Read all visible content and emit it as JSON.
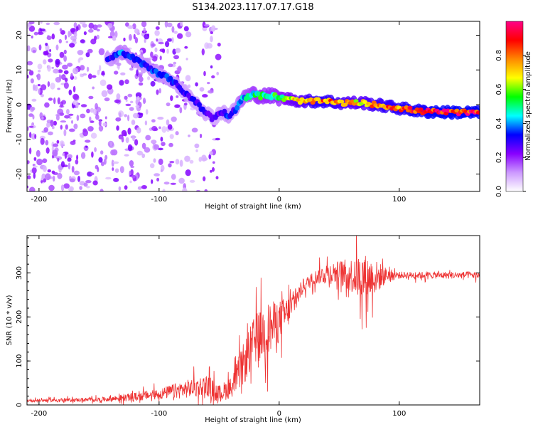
{
  "title": "S134.2023.117.07.17.G18",
  "chart_data": [
    {
      "type": "heatmap",
      "xlabel": "Height of straight line (km)",
      "ylabel": "Frequency (Hz)",
      "xlim": [
        -210,
        167
      ],
      "ylim": [
        -25,
        24
      ],
      "xticks": [
        -200,
        -100,
        0,
        100
      ],
      "yticks": [
        20,
        10,
        0,
        -10,
        -20
      ],
      "colorbar": {
        "label": "Normalized spectral amplitude",
        "range": [
          0,
          1
        ],
        "ticks": [
          "0.0",
          "0.2",
          "0.4",
          "0.6",
          "0.8"
        ],
        "colors": [
          "#ffffff",
          "#cc99ff",
          "#8800ff",
          "#0000ff",
          "#00ffff",
          "#00ff00",
          "#ffff00",
          "#ff8800",
          "#ff0000",
          "#ff0088"
        ]
      },
      "ridge": {
        "x": [
          -143,
          -130,
          -120,
          -110,
          -100,
          -90,
          -80,
          -70,
          -62,
          -55,
          -48,
          -42,
          -38,
          -30,
          -22,
          -15,
          -5,
          0,
          10,
          20,
          30,
          40,
          50,
          60,
          70,
          80,
          90,
          100,
          110,
          120,
          130,
          140,
          150,
          160,
          167
        ],
        "y": [
          13,
          15,
          13,
          11,
          9,
          7,
          4,
          1,
          -2,
          -4,
          -2,
          -3,
          -2,
          2,
          3,
          2.5,
          2.5,
          2,
          1.5,
          1,
          1,
          1,
          0.5,
          0.5,
          0.5,
          0,
          -0.5,
          -1,
          -1.5,
          -2,
          -2,
          -2.2,
          -2.2,
          -2.3,
          -2.3
        ],
        "amplitude": [
          0.3,
          0.4,
          0.35,
          0.35,
          0.35,
          0.35,
          0.3,
          0.3,
          0.3,
          0.25,
          0.3,
          0.35,
          0.3,
          0.45,
          0.5,
          0.55,
          0.55,
          0.55,
          0.7,
          0.75,
          0.85,
          0.85,
          0.8,
          0.75,
          0.75,
          0.8,
          0.85,
          0.85,
          0.9,
          0.9,
          0.95,
          0.95,
          0.95,
          0.95,
          0.95
        ]
      },
      "noise_region": {
        "x_range": [
          -210,
          -50
        ],
        "amplitude": 0.15
      }
    },
    {
      "type": "line",
      "xlabel": "Height of straight line (km)",
      "ylabel": "SNR (10 * v/v)",
      "xlim": [
        -210,
        167
      ],
      "ylim": [
        0,
        385
      ],
      "xticks": [
        -200,
        -100,
        0,
        100
      ],
      "yticks": [
        0,
        100,
        200,
        300
      ],
      "color": "#ee3333",
      "envelope": {
        "x": [
          -210,
          -150,
          -120,
          -100,
          -80,
          -60,
          -50,
          -40,
          -30,
          -20,
          -10,
          0,
          10,
          20,
          30,
          40,
          50,
          60,
          70,
          80,
          90,
          100,
          120,
          140,
          167
        ],
        "y": [
          10,
          12,
          18,
          25,
          35,
          45,
          25,
          40,
          90,
          150,
          170,
          190,
          220,
          270,
          290,
          300,
          300,
          295,
          290,
          290,
          295,
          295,
          295,
          295,
          295
        ],
        "noise": [
          4,
          6,
          12,
          15,
          25,
          30,
          25,
          30,
          60,
          70,
          80,
          60,
          40,
          20,
          20,
          30,
          35,
          50,
          70,
          50,
          20,
          10,
          10,
          10,
          10
        ]
      }
    }
  ]
}
